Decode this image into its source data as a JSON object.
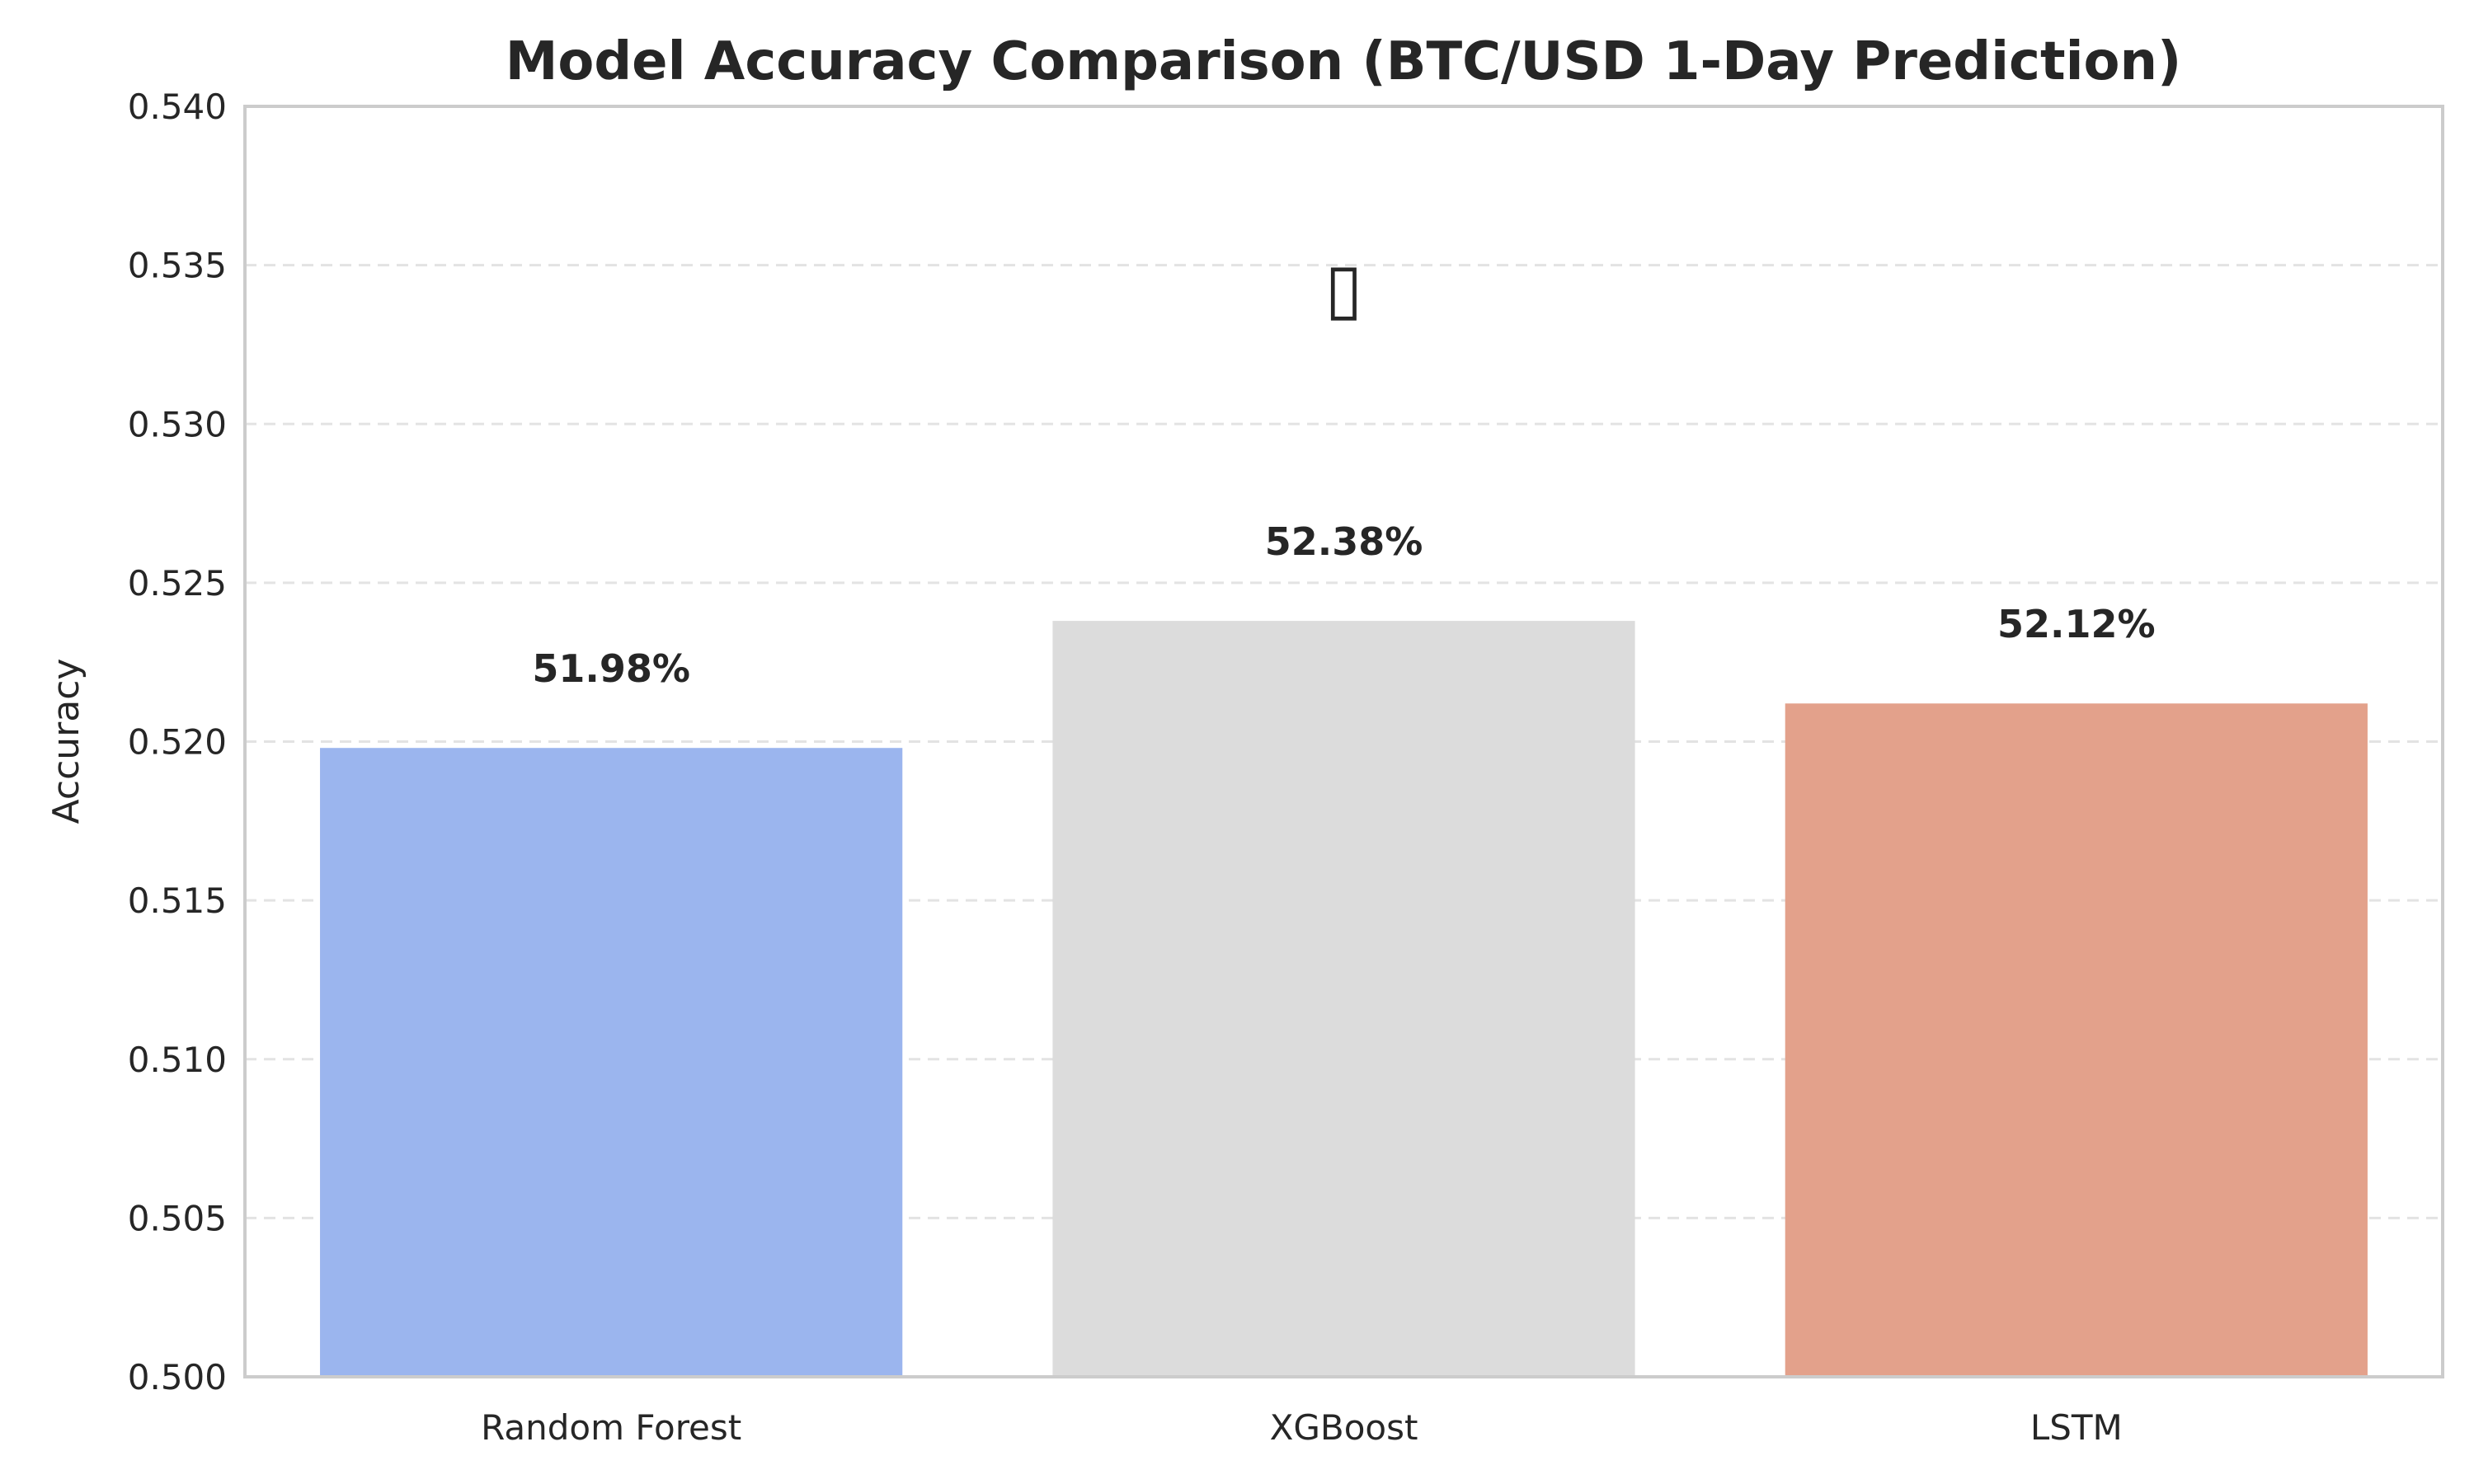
{
  "chart_data": {
    "type": "bar",
    "title": "Model Accuracy Comparison (BTC/USD 1-Day Prediction)",
    "xlabel": "",
    "ylabel": "Accuracy",
    "categories": [
      "Random Forest",
      "XGBoost",
      "LSTM"
    ],
    "values": [
      0.5198,
      0.5238,
      0.5212
    ],
    "data_labels": [
      "51.98%",
      "52.38%",
      "52.12%"
    ],
    "bar_colors": [
      "#9bb5ee",
      "#dcdcdc",
      "#e3a18b"
    ],
    "ylim": [
      0.5,
      0.54
    ],
    "yticks": [
      "0.500",
      "0.505",
      "0.510",
      "0.515",
      "0.520",
      "0.525",
      "0.530",
      "0.535",
      "0.540"
    ],
    "grid": true,
    "highlight": {
      "category": "XGBoost",
      "marker": "▯"
    }
  }
}
